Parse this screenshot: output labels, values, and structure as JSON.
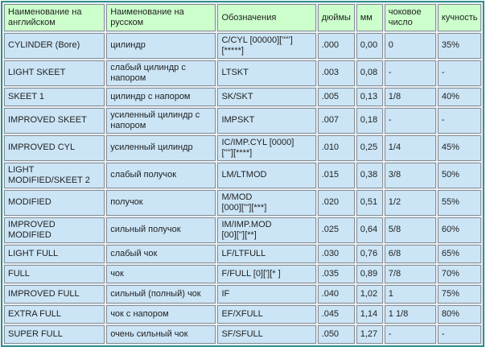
{
  "colors": {
    "header_bg": "#ccffcc",
    "row_bg": "#cbe5f6",
    "cell_border": "#848b92",
    "outer_border": "#2e8f8d",
    "grid_gap_bg": "#e7eef3",
    "text": "#1f1f1f"
  },
  "table": {
    "columns": [
      {
        "key": "english",
        "label": "Наименование на\nанглийском"
      },
      {
        "key": "russian",
        "label": "Наименование на\nрусском"
      },
      {
        "key": "designation",
        "label": "Обозначения"
      },
      {
        "key": "inches",
        "label": "дюймы"
      },
      {
        "key": "mm",
        "label": "мм"
      },
      {
        "key": "choke_number",
        "label": "чоковое\nчисло"
      },
      {
        "key": "pattern",
        "label": "кучность"
      }
    ],
    "rows": [
      {
        "english": "CYLINDER (Bore)",
        "russian": "цилиндр",
        "designation": "C/CYL [00000][''''']\n[*****]",
        "inches": ".000",
        "mm": "0,00",
        "choke_number": "0",
        "pattern": "35%"
      },
      {
        "english": "LIGHT SKEET",
        "russian": "слабый цилиндр с\nнапором",
        "designation": "LTSKT",
        "inches": ".003",
        "mm": "0,08",
        "choke_number": "-",
        "pattern": "-"
      },
      {
        "english": "SKEET 1",
        "russian": "цилиндр с напором",
        "designation": "SK/SKT",
        "inches": ".005",
        "mm": "0,13",
        "choke_number": "1/8",
        "pattern": "40%"
      },
      {
        "english": "IMPROVED SKEET",
        "russian": "усиленный цилиндр с\nнапором",
        "designation": "IMPSKT",
        "inches": ".007",
        "mm": "0,18",
        "choke_number": "-",
        "pattern": "-"
      },
      {
        "english": "IMPROVED CYL",
        "russian": "усиленный цилиндр",
        "designation": "IC/IMP.CYL [0000]\n[''''][****]",
        "inches": ".010",
        "mm": "0,25",
        "choke_number": "1/4",
        "pattern": "45%"
      },
      {
        "english": "LIGHT\nMODIFIED/SKEET 2",
        "russian": "слабый получок",
        "designation": "LM/LTMOD",
        "inches": ".015",
        "mm": "0,38",
        "choke_number": "3/8",
        "pattern": "50%"
      },
      {
        "english": "MODIFIED",
        "russian": "получок",
        "designation": "M/MOD\n[000]['''][***]",
        "inches": ".020",
        "mm": "0,51",
        "choke_number": "1/2",
        "pattern": "55%"
      },
      {
        "english": "IMPROVED MODIFIED",
        "russian": "сильный получок",
        "designation": "IM/IMP.MOD\n[00][''][**]",
        "inches": ".025",
        "mm": "0,64",
        "choke_number": "5/8",
        "pattern": "60%"
      },
      {
        "english": "LIGHT FULL",
        "russian": "слабый чок",
        "designation": "LF/LTFULL",
        "inches": ".030",
        "mm": "0,76",
        "choke_number": "6/8",
        "pattern": "65%"
      },
      {
        "english": "FULL",
        "russian": "чок",
        "designation": "F/FULL [0]['][* ]",
        "inches": ".035",
        "mm": "0,89",
        "choke_number": "7/8",
        "pattern": "70%"
      },
      {
        "english": "IMPROVED FULL",
        "russian": "сильный (полный) чок",
        "designation": "IF",
        "inches": ".040",
        "mm": "1,02",
        "choke_number": "1",
        "pattern": "75%"
      },
      {
        "english": "EXTRA FULL",
        "russian": "чок с напором",
        "designation": "EF/XFULL",
        "inches": ".045",
        "mm": "1,14",
        "choke_number": "1 1/8",
        "pattern": "80%"
      },
      {
        "english": "SUPER FULL",
        "russian": "очень сильный чок",
        "designation": "SF/SFULL",
        "inches": ".050",
        "mm": "1,27",
        "choke_number": "-",
        "pattern": "-"
      }
    ]
  }
}
